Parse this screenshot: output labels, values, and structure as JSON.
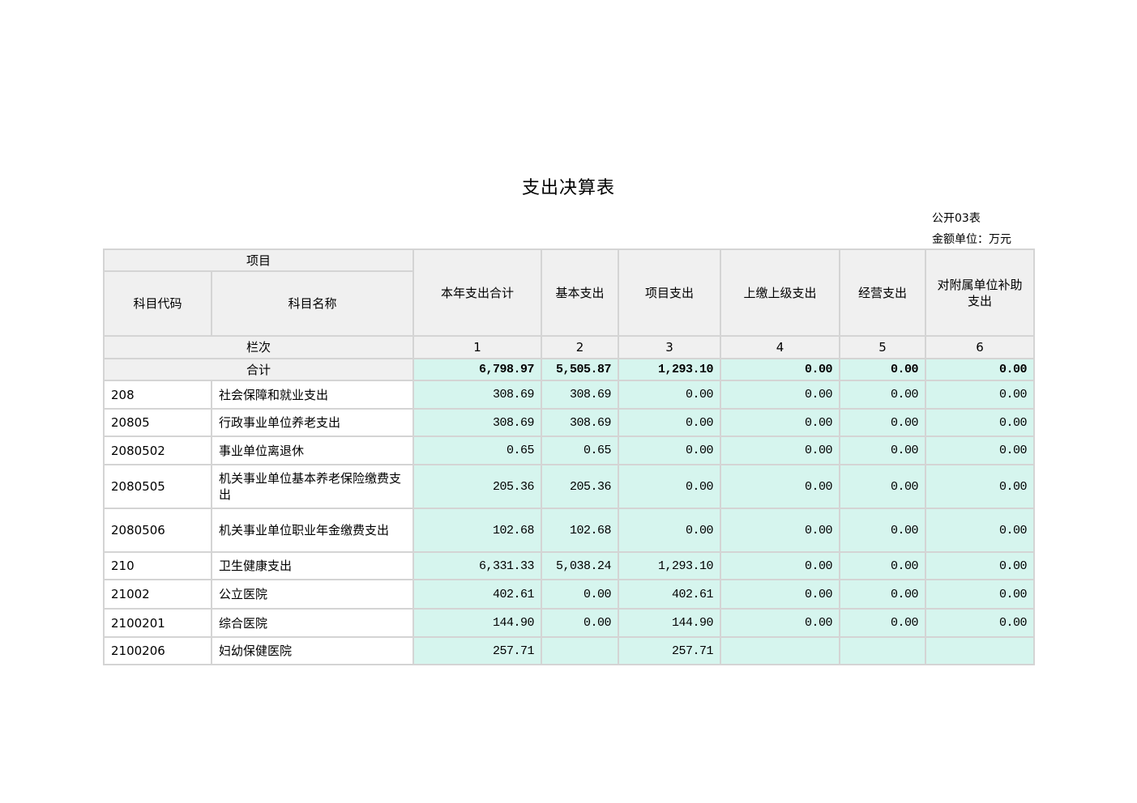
{
  "title": "支出决算表",
  "form_no": "公开03表",
  "unit": "金额单位：万元",
  "header": {
    "project": "项目",
    "code": "科目代码",
    "name": "科目名称",
    "columns": [
      "本年支出合计",
      "基本支出",
      "项目支出",
      "上缴上级支出",
      "经营支出",
      "对附属单位补助支出"
    ],
    "column_index_label": "栏次",
    "column_numbers": [
      "1",
      "2",
      "3",
      "4",
      "5",
      "6"
    ]
  },
  "total": {
    "label": "合计",
    "values": [
      "6,798.97",
      "5,505.87",
      "1,293.10",
      "0.00",
      "0.00",
      "0.00"
    ]
  },
  "rows": [
    {
      "code": "208",
      "name": "社会保障和就业支出",
      "values": [
        "308.69",
        "308.69",
        "0.00",
        "0.00",
        "0.00",
        "0.00"
      ]
    },
    {
      "code": "20805",
      "name": "行政事业单位养老支出",
      "values": [
        "308.69",
        "308.69",
        "0.00",
        "0.00",
        "0.00",
        "0.00"
      ]
    },
    {
      "code": "2080502",
      "name": "事业单位离退休",
      "values": [
        "0.65",
        "0.65",
        "0.00",
        "0.00",
        "0.00",
        "0.00"
      ]
    },
    {
      "code": "2080505",
      "name": "机关事业单位基本养老保险缴费支出",
      "values": [
        "205.36",
        "205.36",
        "0.00",
        "0.00",
        "0.00",
        "0.00"
      ]
    },
    {
      "code": "2080506",
      "name": "机关事业单位职业年金缴费支出",
      "values": [
        "102.68",
        "102.68",
        "0.00",
        "0.00",
        "0.00",
        "0.00"
      ]
    },
    {
      "code": "210",
      "name": "卫生健康支出",
      "values": [
        "6,331.33",
        "5,038.24",
        "1,293.10",
        "0.00",
        "0.00",
        "0.00"
      ]
    },
    {
      "code": "21002",
      "name": "公立医院",
      "values": [
        "402.61",
        "0.00",
        "402.61",
        "0.00",
        "0.00",
        "0.00"
      ]
    },
    {
      "code": "2100201",
      "name": "综合医院",
      "values": [
        "144.90",
        "0.00",
        "144.90",
        "0.00",
        "0.00",
        "0.00"
      ]
    },
    {
      "code": "2100206",
      "name": "妇幼保健医院",
      "values": [
        "257.71",
        "",
        "257.71",
        "",
        "",
        ""
      ]
    }
  ],
  "colors": {
    "header_bg": "#f0f0f0",
    "value_bg": "#d6f5ee",
    "border": "#d4d4d4"
  }
}
